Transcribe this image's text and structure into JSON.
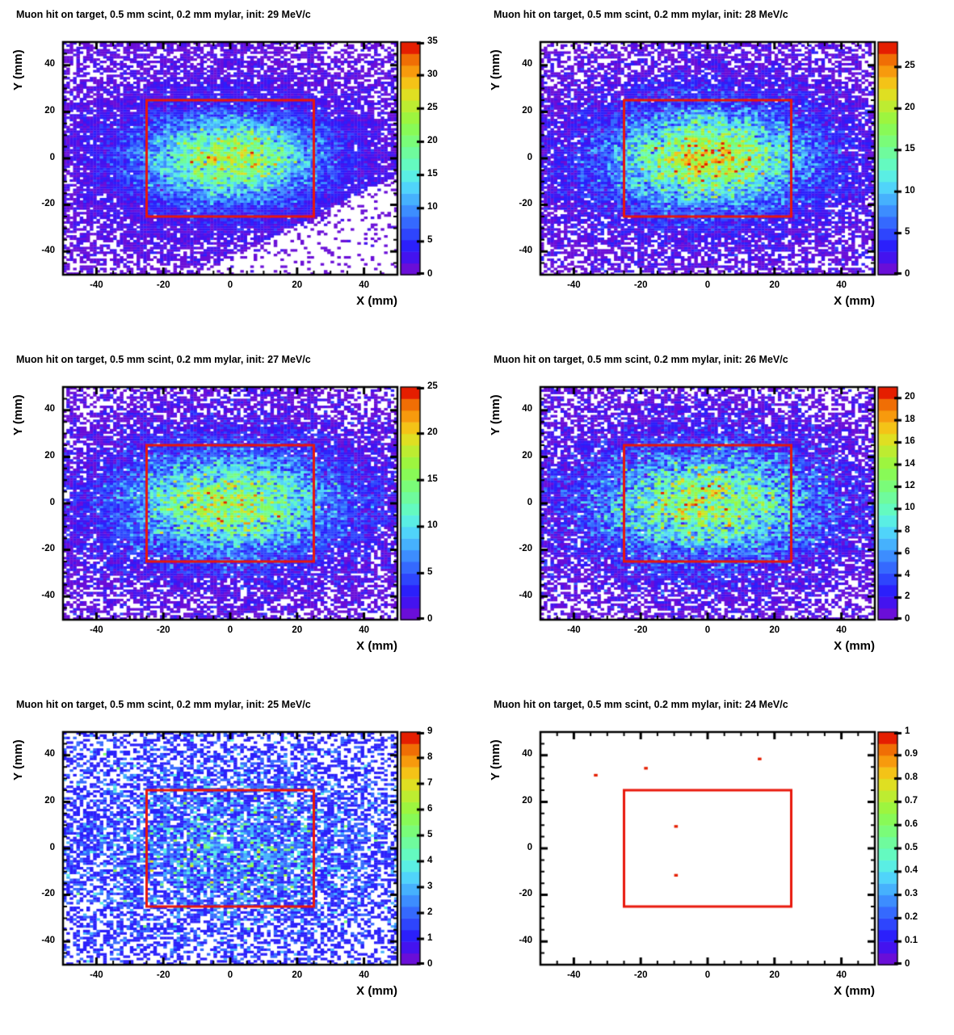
{
  "figure": {
    "background": "#ffffff",
    "frame_color": "#000000",
    "description": "Six ROOT-style 2D hit-distribution histograms of muon hits on target for decreasing initial momentum"
  },
  "axes": {
    "x_label": "X (mm)",
    "y_label": "Y (mm)",
    "x_range": [
      -50,
      50
    ],
    "y_range": [
      -50,
      50
    ],
    "x_ticks": [
      -40,
      -20,
      0,
      20,
      40
    ],
    "y_ticks": [
      -40,
      -20,
      0,
      20,
      40
    ],
    "minor_tick_step": 5,
    "x_bins": 100,
    "y_bins": 100
  },
  "palette": [
    "#6a0ed8",
    "#4413ef",
    "#2b20fb",
    "#2e45fd",
    "#3569fe",
    "#3d8dfe",
    "#46b1fd",
    "#50d4fa",
    "#5aeee4",
    "#64fac0",
    "#6ffb9d",
    "#7afc79",
    "#88fa57",
    "#9df53f",
    "#bdec31",
    "#dfdf22",
    "#f4c317",
    "#f79a0d",
    "#f06e05",
    "#e51e00"
  ],
  "target_box": {
    "x": [
      -25,
      25
    ],
    "y": [
      -25,
      25
    ],
    "color": "#e8170b",
    "line_width": 3
  },
  "chart_data": [
    {
      "type": "heatmap",
      "title": "Muon hit on target, 0.5 mm scint, 0.2 mm mylar, init: 29 MeV/c",
      "momentum_mev_c": 29,
      "zmax": 35,
      "colorbar_ticks": [
        0,
        5,
        10,
        15,
        20,
        25,
        30,
        35
      ],
      "distribution": {
        "kind": "poisson_gaussian",
        "core_amplitude": 19,
        "core_sigma_x": 16.5,
        "core_sigma_y": 11.5,
        "halo_amplitude": 4,
        "halo_sigma_x": 30,
        "halo_sigma_y": 22,
        "background": 0.55,
        "seed": 11,
        "cut": {
          "slope": 0.72,
          "offset": 43,
          "factor": 0.12
        }
      }
    },
    {
      "type": "heatmap",
      "title": "Muon hit on target, 0.5 mm scint, 0.2 mm mylar, init: 28 MeV/c",
      "momentum_mev_c": 28,
      "zmax": 28,
      "colorbar_ticks": [
        0,
        5,
        10,
        15,
        20,
        25
      ],
      "distribution": {
        "kind": "poisson_gaussian",
        "core_amplitude": 16.5,
        "core_sigma_x": 17.5,
        "core_sigma_y": 12.5,
        "halo_amplitude": 4,
        "halo_sigma_x": 32,
        "halo_sigma_y": 23,
        "background": 0.5,
        "seed": 22
      }
    },
    {
      "type": "heatmap",
      "title": "Muon hit on target, 0.5 mm scint, 0.2 mm mylar, init: 27 MeV/c",
      "momentum_mev_c": 27,
      "zmax": 25,
      "colorbar_ticks": [
        0,
        5,
        10,
        15,
        20,
        25
      ],
      "distribution": {
        "kind": "poisson_gaussian",
        "core_amplitude": 13,
        "core_sigma_x": 19,
        "core_sigma_y": 13,
        "halo_amplitude": 3.2,
        "halo_sigma_x": 33,
        "halo_sigma_y": 24,
        "background": 0.5,
        "seed": 33
      }
    },
    {
      "type": "heatmap",
      "title": "Muon hit on target, 0.5 mm scint, 0.2 mm mylar, init: 26 MeV/c",
      "momentum_mev_c": 26,
      "zmax": 21,
      "colorbar_ticks": [
        0,
        2,
        4,
        6,
        8,
        10,
        12,
        14,
        16,
        18,
        20
      ],
      "distribution": {
        "kind": "poisson_gaussian",
        "core_amplitude": 10,
        "core_sigma_x": 20,
        "core_sigma_y": 14,
        "halo_amplitude": 2.8,
        "halo_sigma_x": 34,
        "halo_sigma_y": 25,
        "background": 0.5,
        "seed": 44
      }
    },
    {
      "type": "heatmap",
      "title": "Muon hit on target, 0.5 mm scint, 0.2 mm mylar, init: 25 MeV/c",
      "momentum_mev_c": 25,
      "zmax": 9,
      "colorbar_ticks": [
        0,
        1,
        2,
        3,
        4,
        5,
        6,
        7,
        8,
        9
      ],
      "distribution": {
        "kind": "poisson_gaussian",
        "core_amplitude": 1.3,
        "core_sigma_x": 24,
        "core_sigma_y": 17,
        "halo_amplitude": 0.7,
        "halo_sigma_x": 40,
        "halo_sigma_y": 30,
        "background": 0.35,
        "seed": 55
      }
    },
    {
      "type": "heatmap",
      "title": "Muon hit on target, 0.5 mm scint, 0.2 mm mylar, init: 24 MeV/c",
      "momentum_mev_c": 24,
      "zmax": 1,
      "colorbar_ticks": [
        0,
        0.1,
        0.2,
        0.3,
        0.4,
        0.5,
        0.6,
        0.7,
        0.8,
        0.9,
        1
      ],
      "distribution": {
        "kind": "points",
        "points": [
          {
            "x": -34,
            "y": 31,
            "value": 1
          },
          {
            "x": -19,
            "y": 34.5,
            "value": 1
          },
          {
            "x": 15,
            "y": 38.5,
            "value": 1
          },
          {
            "x": -9.5,
            "y": 9,
            "value": 1
          },
          {
            "x": -9.5,
            "y": -11.5,
            "value": 1
          }
        ]
      }
    }
  ]
}
